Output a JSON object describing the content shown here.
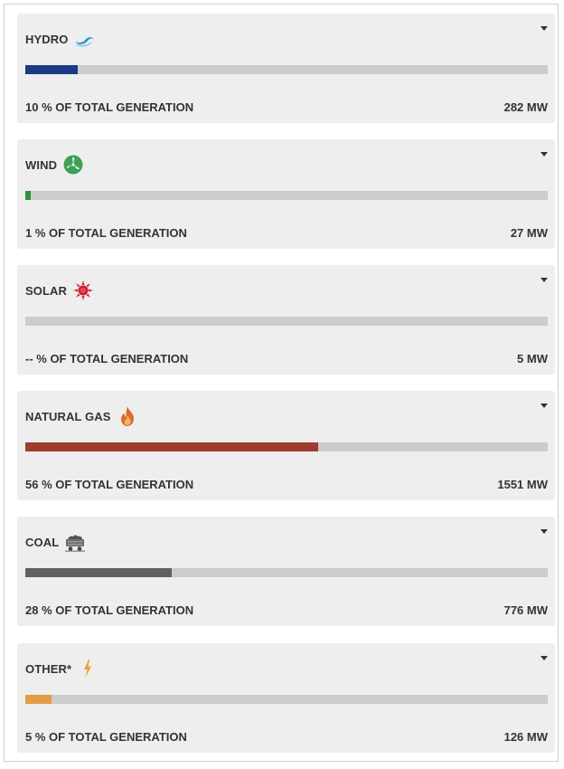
{
  "cards": [
    {
      "name": "HYDRO",
      "icon": "wave-icon",
      "pct_text": "10 % OF TOTAL GENERATION",
      "mw_text": "282 MW",
      "fill_fraction": 0.1,
      "color": "#1a3a86"
    },
    {
      "name": "WIND",
      "icon": "wind-turbine-icon",
      "pct_text": "1 % OF TOTAL GENERATION",
      "mw_text": "27 MW",
      "fill_fraction": 0.01,
      "color": "#2f8f3d"
    },
    {
      "name": "SOLAR",
      "icon": "sun-icon",
      "pct_text": "-- % OF TOTAL GENERATION",
      "mw_text": "5 MW",
      "fill_fraction": 0.0,
      "color": "#c0392b"
    },
    {
      "name": "NATURAL GAS",
      "icon": "flame-icon",
      "pct_text": "56 % OF TOTAL GENERATION",
      "mw_text": "1551 MW",
      "fill_fraction": 0.56,
      "color": "#9e3c2d"
    },
    {
      "name": "COAL",
      "icon": "coal-cart-icon",
      "pct_text": "28 % OF TOTAL GENERATION",
      "mw_text": "776 MW",
      "fill_fraction": 0.28,
      "color": "#616161"
    },
    {
      "name": "OTHER*",
      "icon": "lightning-icon",
      "pct_text": "5 % OF TOTAL GENERATION",
      "mw_text": "126 MW",
      "fill_fraction": 0.05,
      "color": "#e39b45"
    }
  ]
}
